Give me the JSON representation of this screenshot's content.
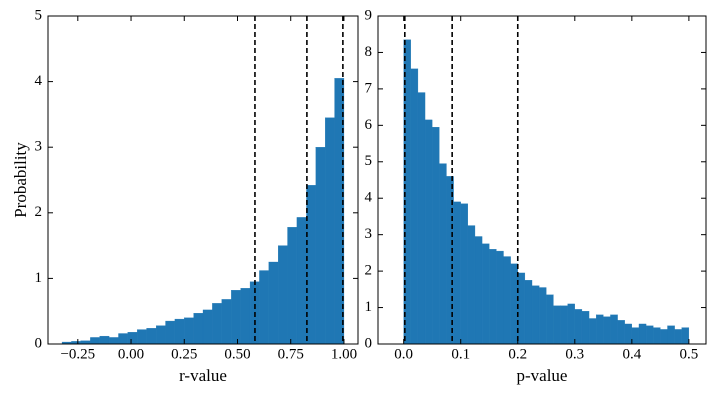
{
  "chart_data": [
    {
      "type": "histogram",
      "xlabel": "r-value",
      "ylabel": "Probability",
      "color": "#1f77b4",
      "bins": [
        -0.324,
        -0.28,
        -0.236,
        -0.191,
        -0.147,
        -0.103,
        -0.059,
        -0.015,
        0.029,
        0.073,
        0.118,
        0.162,
        0.206,
        0.25,
        0.294,
        0.338,
        0.382,
        0.426,
        0.471,
        0.515,
        0.559,
        0.603,
        0.647,
        0.691,
        0.735,
        0.779,
        0.824,
        0.868,
        0.912,
        0.956,
        1.0
      ],
      "values": [
        0.03,
        0.04,
        0.05,
        0.1,
        0.12,
        0.1,
        0.16,
        0.18,
        0.22,
        0.24,
        0.28,
        0.35,
        0.38,
        0.4,
        0.47,
        0.52,
        0.62,
        0.68,
        0.82,
        0.85,
        0.95,
        1.12,
        1.25,
        1.5,
        1.78,
        1.93,
        2.42,
        3.0,
        3.45,
        4.05
      ],
      "xlim": [
        -0.39,
        1.066
      ],
      "ylim": [
        0,
        5
      ],
      "xticks": [
        {
          "value": -0.25,
          "label": "−0.25"
        },
        {
          "value": 0,
          "label": "0.00"
        },
        0.25,
        {
          "value": 0.5,
          "label": "0.50"
        },
        0.75,
        {
          "value": 1,
          "label": "1.00"
        }
      ],
      "yticks": [
        0,
        1,
        2,
        3,
        4,
        5
      ],
      "vlines": [
        0.582,
        0.826,
        0.995
      ]
    },
    {
      "type": "histogram",
      "xlabel": "p-value",
      "color": "#1f77b4",
      "bins": [
        0,
        0.0125,
        0.025,
        0.0375,
        0.05,
        0.0625,
        0.075,
        0.0875,
        0.1,
        0.1125,
        0.125,
        0.1375,
        0.15,
        0.1625,
        0.175,
        0.1875,
        0.2,
        0.2125,
        0.225,
        0.2375,
        0.25,
        0.2625,
        0.275,
        0.2875,
        0.3,
        0.3125,
        0.325,
        0.3375,
        0.35,
        0.3625,
        0.375,
        0.3875,
        0.4,
        0.4125,
        0.425,
        0.4375,
        0.45,
        0.4625,
        0.475,
        0.4875,
        0.5
      ],
      "values": [
        8.35,
        7.55,
        6.9,
        6.15,
        5.95,
        4.95,
        4.6,
        3.9,
        3.85,
        3.25,
        2.95,
        2.75,
        2.6,
        2.55,
        2.4,
        2.2,
        1.95,
        1.75,
        1.6,
        1.55,
        1.35,
        1.05,
        1.05,
        1.1,
        0.95,
        0.9,
        0.7,
        0.8,
        0.75,
        0.8,
        0.65,
        0.55,
        0.45,
        0.55,
        0.5,
        0.45,
        0.4,
        0.5,
        0.4,
        0.45
      ],
      "xlim": [
        -0.045,
        0.53
      ],
      "ylim": [
        0,
        9
      ],
      "xticks": [
        {
          "value": 0,
          "label": "0.0"
        },
        0.1,
        0.2,
        0.3,
        0.4,
        0.5
      ],
      "yticks": [
        0,
        1,
        2,
        3,
        4,
        5,
        6,
        7,
        8,
        9
      ],
      "vlines": [
        0.002,
        0.085,
        0.2
      ]
    }
  ]
}
